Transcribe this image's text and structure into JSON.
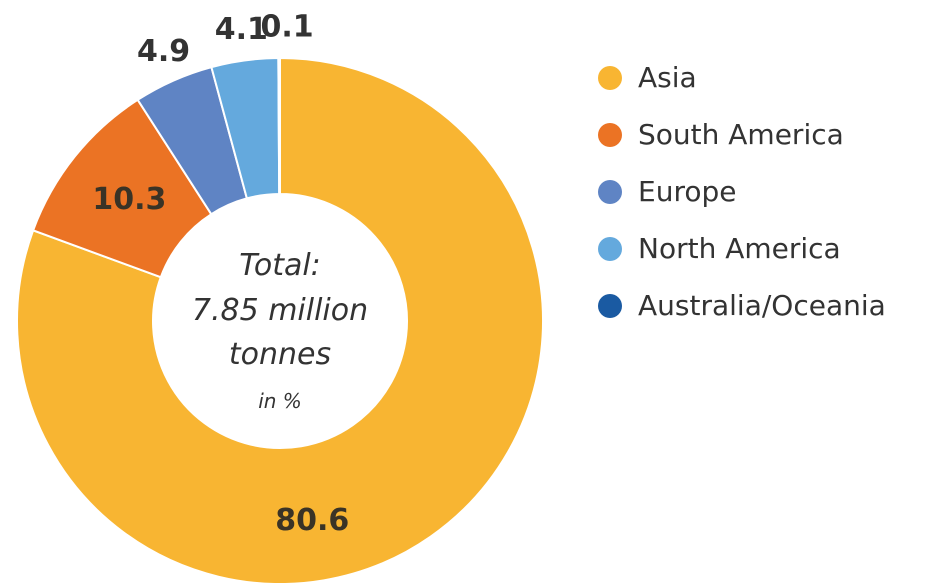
{
  "chart_data": {
    "type": "pie",
    "donut": true,
    "categories": [
      "Asia",
      "South America",
      "Europe",
      "North America",
      "Australia/Oceania"
    ],
    "values": [
      80.6,
      10.3,
      4.9,
      4.1,
      0.1
    ],
    "value_labels": [
      "80.6",
      "10.3",
      "4.9",
      "4.1",
      "0.1"
    ],
    "colors": [
      "#f8b532",
      "#eb7324",
      "#5f84c4",
      "#64a9dd",
      "#1a5aa2"
    ],
    "center_text": {
      "line1": "Total:",
      "line2": "7.85 million",
      "line3": "tonnes",
      "unit": "in %"
    },
    "legend_position": "right"
  }
}
